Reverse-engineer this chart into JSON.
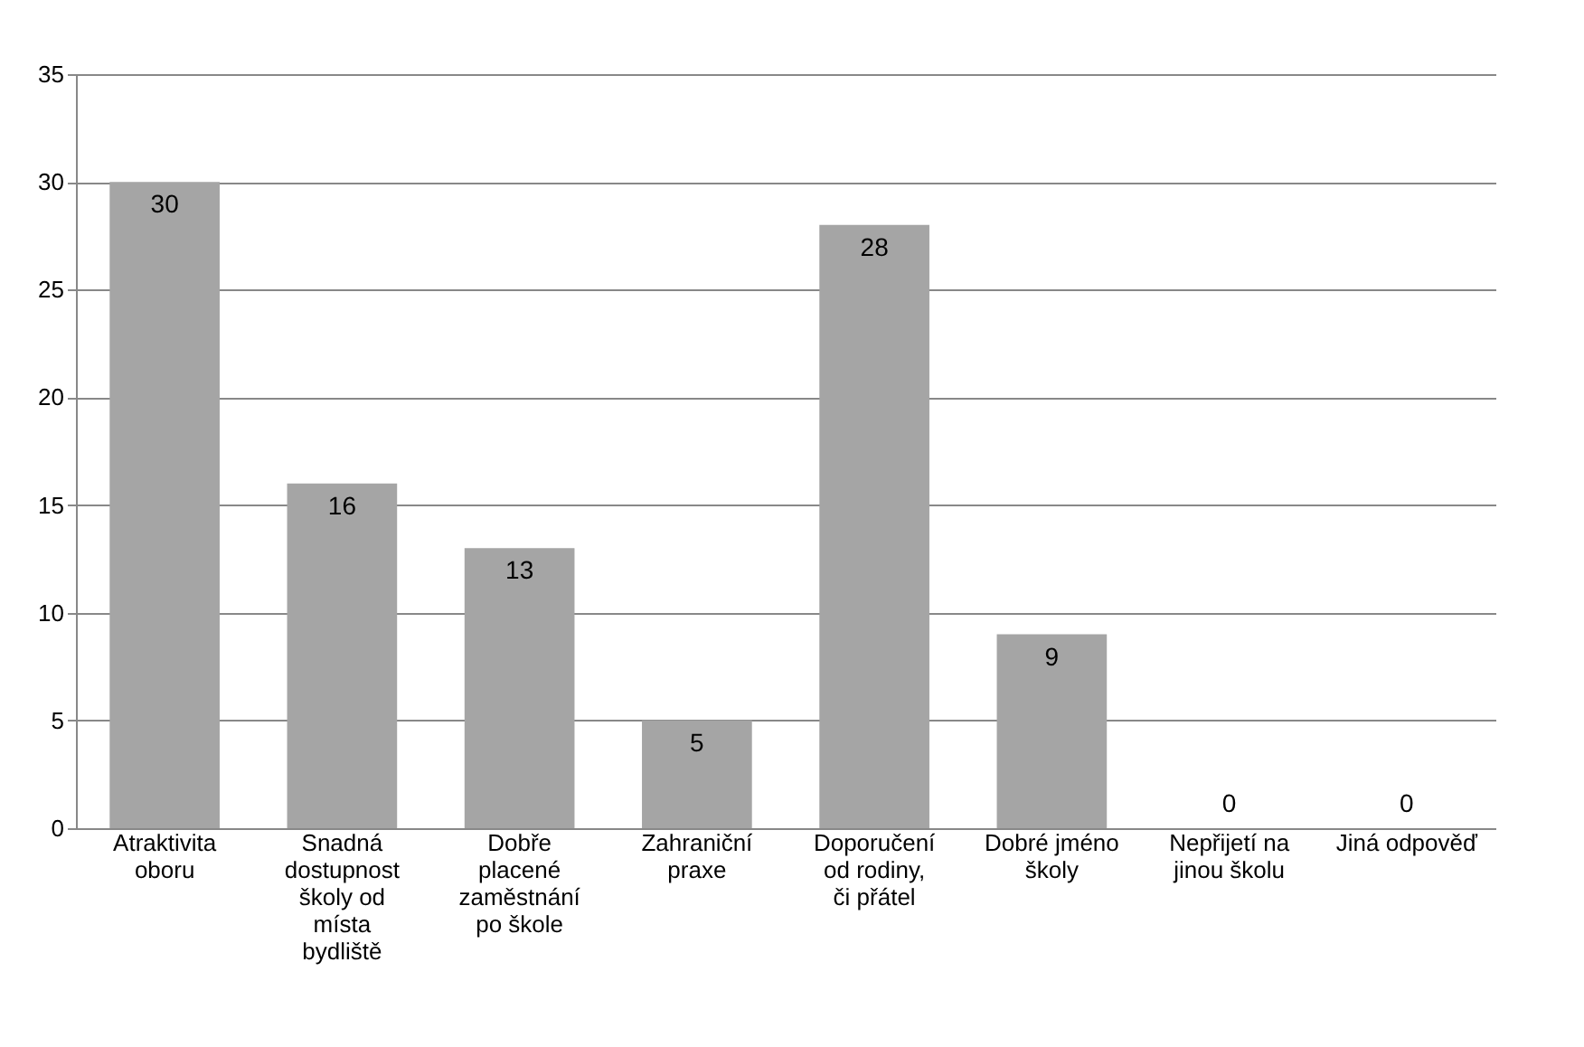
{
  "chart_data": {
    "type": "bar",
    "categories": [
      "Atraktivita oboru",
      "Snadná dostupnost školy od místa bydliště",
      "Dobře placené zaměstnání po škole",
      "Zahraniční praxe",
      "Doporučení od rodiny, či přátel",
      "Dobré jméno školy",
      "Nepřijetí na jinou školu",
      "Jiná odpověď"
    ],
    "values": [
      30,
      16,
      13,
      5,
      28,
      9,
      0,
      0
    ],
    "color": "#a5a5a5",
    "ylim": [
      0,
      35
    ],
    "yticks": [
      0,
      5,
      10,
      15,
      20,
      25,
      30,
      35
    ],
    "grid": "y",
    "data_labels": true
  }
}
